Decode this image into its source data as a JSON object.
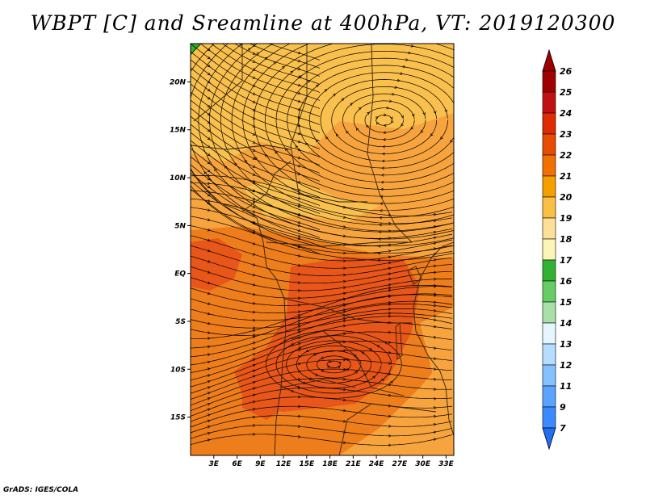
{
  "title": "WBPT [C] and Sreamline at 400hPa, VT: 2019120300",
  "credit": "GrADS: IGES/COLA",
  "map": {
    "lon_labels": [
      "3E",
      "6E",
      "9E",
      "12E",
      "15E",
      "18E",
      "21E",
      "24E",
      "27E",
      "30E",
      "33E"
    ],
    "lat_labels": [
      "20N",
      "15N",
      "10N",
      "5N",
      "EQ",
      "5S",
      "10S",
      "15S"
    ],
    "lon_range": [
      "0E",
      "34E"
    ],
    "lat_range": [
      "19S",
      "24N"
    ],
    "shading_variable": "wet-bulb potential temperature",
    "overlay": "streamlines",
    "features": [
      {
        "name": "anticyclonic-gyre",
        "center_lon": 25,
        "center_lat": 16
      },
      {
        "name": "cyclonic-swirl",
        "center_lon": 18.5,
        "center_lat": -9.5
      }
    ]
  },
  "colorbar": {
    "labels": [
      "26",
      "25",
      "24",
      "23",
      "22",
      "21",
      "20",
      "19",
      "18",
      "17",
      "16",
      "15",
      "14",
      "13",
      "12",
      "11",
      "9",
      "7"
    ],
    "colors": [
      "#a00000",
      "#c01010",
      "#e02a00",
      "#e84c00",
      "#f07000",
      "#f5a000",
      "#fac045",
      "#fde098",
      "#fbf5b8",
      "#31b231",
      "#66cc66",
      "#a8e0a8",
      "#e6f6ff",
      "#b6dcff",
      "#85c1ff",
      "#5aa4ff",
      "#3c8aff",
      "#1f6ff0"
    ]
  },
  "colors": {
    "base_field": "#f7a43e",
    "light_field": "#fac04e",
    "warm_field": "#ee7d1c",
    "hot_field": "#e8561a",
    "boundary": "#3a2a12",
    "streamline": "#000000"
  }
}
